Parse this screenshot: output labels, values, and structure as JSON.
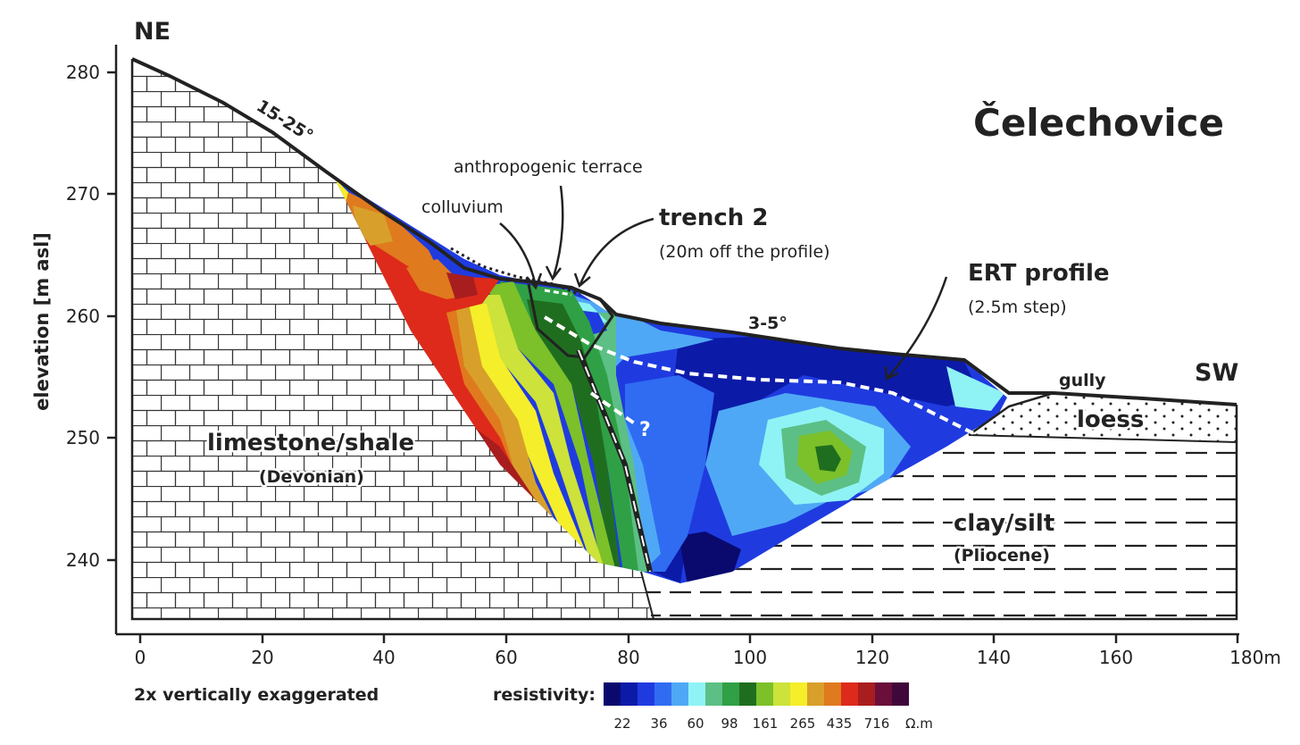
{
  "title": "Čelechovice",
  "directions": {
    "left": "NE",
    "right": "SW"
  },
  "y_axis": {
    "label": "elevation [m asl]",
    "ticks": [
      "280",
      "270",
      "260",
      "250",
      "240"
    ]
  },
  "x_axis": {
    "ticks": [
      "0",
      "20",
      "40",
      "60",
      "80",
      "100",
      "120",
      "140",
      "160",
      "180m"
    ]
  },
  "slopes": {
    "upper": "15-25°",
    "lower": "3-5°"
  },
  "annotations": {
    "terrace": "anthropogenic terrace",
    "colluvium": "colluvium",
    "trench_title": "trench 2",
    "trench_note": "(20m off the profile)",
    "ert_title": "ERT profile",
    "ert_note": "(2.5m step)",
    "gully": "gully",
    "question": "?"
  },
  "units": {
    "limestone": "limestone/shale",
    "limestone_age": "(Devonian)",
    "loess": "loess",
    "clay": "clay/silt",
    "clay_age": "(Pliocene)"
  },
  "footer": {
    "exaggeration": "2x vertically exaggerated"
  },
  "legend": {
    "title": "resistivity:",
    "unit": "Ω.m",
    "values": [
      "22",
      "36",
      "60",
      "98",
      "161",
      "265",
      "435",
      "716"
    ],
    "colors": [
      "#0a0a6e",
      "#0c1aa8",
      "#1f3be0",
      "#2f6cf2",
      "#4fa8f5",
      "#8ff3f5",
      "#5cbf85",
      "#2fa046",
      "#1f6e1f",
      "#7cc02a",
      "#cde23a",
      "#f5ee2a",
      "#d8a02a",
      "#e07a1e",
      "#de2a1a",
      "#a81e1e",
      "#6a0e3a",
      "#40083a"
    ]
  }
}
